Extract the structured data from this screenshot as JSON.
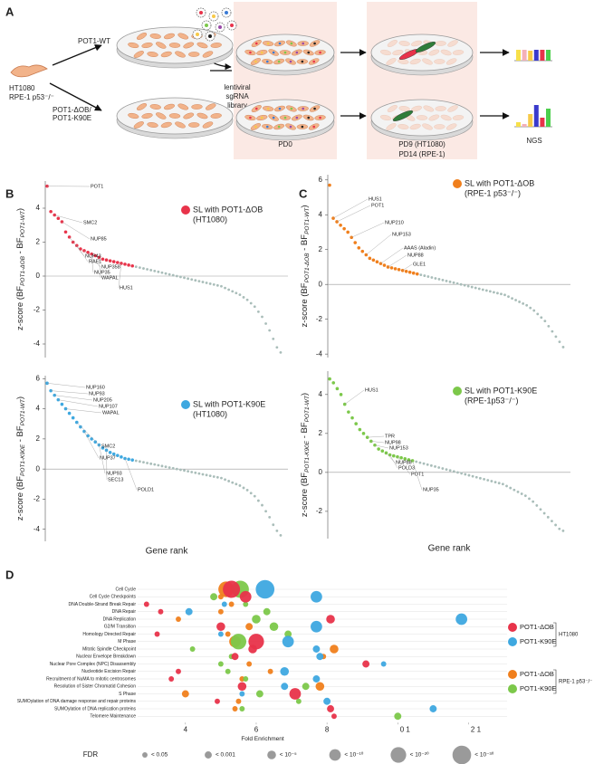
{
  "panel_a": {
    "label": "A",
    "wt": "POT1-WT",
    "cells": [
      "HT1080",
      "RPE-1 p53⁻/⁻"
    ],
    "mutants": [
      "POT1-ΔOB/",
      "POT1-K90E"
    ],
    "library": [
      "lentiviral",
      "sgRNA",
      "library"
    ],
    "pd0": "PD0",
    "pd_late": [
      "PD9  (HT1080)",
      "PD14 (RPE-1)"
    ],
    "ngs": "NGS"
  },
  "chart_data": [
    {
      "type": "rank",
      "panel": "B",
      "ylabel": [
        "z-score (BF",
        "POT1-ΔOB",
        " - BF",
        "POT1-WT",
        ")"
      ],
      "series": [
        {
          "name": "SL with POT1-ΔOB",
          "subtitle": "(HT1080)",
          "color": "#e8334a",
          "values": [
            5.3,
            3.8,
            3.6,
            3.4,
            3.2,
            2.6,
            2.3,
            2.0,
            1.8,
            1.6,
            1.5,
            1.4,
            1.3,
            1.2,
            1.1,
            1.0,
            0.95,
            0.9,
            0.85,
            0.8,
            0.75,
            0.7,
            0.65,
            0.6
          ]
        },
        {
          "color": "#a9bdb9",
          "values": [
            0.55,
            0.5,
            0.45,
            0.4,
            0.35,
            0.3,
            0.25,
            0.2,
            0.15,
            0.1,
            0.05,
            0,
            -0.05,
            -0.1,
            -0.15,
            -0.2,
            -0.25,
            -0.3,
            -0.35,
            -0.4,
            -0.45,
            -0.5,
            -0.55,
            -0.6,
            -0.7,
            -0.8,
            -0.9,
            -1.0,
            -1.1,
            -1.25,
            -1.4,
            -1.6,
            -1.8,
            -2.1,
            -2.4,
            -2.8,
            -3.2,
            -3.7,
            -4.2,
            -4.5
          ]
        }
      ],
      "ylim": [
        -4.8,
        5.6
      ],
      "yticks": [
        -4,
        -2,
        0,
        2,
        4
      ],
      "hline": 0,
      "annotations": [
        {
          "text": "POT1",
          "color": "#e8334a"
        },
        {
          "text": "SMC2",
          "color": "#9a4aa8"
        },
        {
          "text": "NUP85",
          "color": "#3a3acc"
        },
        {
          "text": "NUP43",
          "color": "#3a3acc"
        },
        {
          "text": "RAE1",
          "color": "#3a3acc"
        },
        {
          "text": "NUP358",
          "color": "#3a3acc"
        },
        {
          "text": "NUP35",
          "color": "#3a3acc"
        },
        {
          "text": "WAPAL",
          "color": "#9a4aa8"
        },
        {
          "text": "HUS1",
          "color": "#9a4aa8"
        }
      ]
    },
    {
      "type": "rank",
      "ylabel": [
        "z-score (BF",
        "POT1-K90E",
        " - BF",
        "POT1-WT",
        ")"
      ],
      "xlabel": "Gene rank",
      "series": [
        {
          "name": "SL with POT1-K90E",
          "subtitle": "(HT1080)",
          "color": "#3ea8e0",
          "values": [
            5.7,
            5.2,
            4.9,
            4.6,
            4.3,
            4.0,
            3.7,
            3.4,
            3.1,
            2.8,
            2.5,
            2.2,
            2.0,
            1.8,
            1.6,
            1.4,
            1.25,
            1.1,
            1.0,
            0.9,
            0.8,
            0.7,
            0.65,
            0.6
          ]
        },
        {
          "color": "#a9bdb9",
          "values": [
            0.55,
            0.5,
            0.45,
            0.4,
            0.35,
            0.3,
            0.25,
            0.2,
            0.15,
            0.1,
            0.05,
            0,
            -0.05,
            -0.1,
            -0.15,
            -0.2,
            -0.25,
            -0.3,
            -0.35,
            -0.4,
            -0.45,
            -0.5,
            -0.55,
            -0.6,
            -0.7,
            -0.8,
            -0.9,
            -1.0,
            -1.1,
            -1.25,
            -1.4,
            -1.6,
            -1.8,
            -2.1,
            -2.4,
            -2.8,
            -3.2,
            -3.7,
            -4.1,
            -4.4
          ]
        }
      ],
      "ylim": [
        -4.8,
        6.2
      ],
      "yticks": [
        -4,
        -2,
        0,
        2,
        4,
        6
      ],
      "hline": 0,
      "annotations": [
        {
          "text": "NUP160",
          "color": "#3a3acc"
        },
        {
          "text": "NUP93",
          "color": "#3a3acc"
        },
        {
          "text": "NUP205",
          "color": "#3a3acc"
        },
        {
          "text": "NUP107",
          "color": "#3a3acc"
        },
        {
          "text": "WAPAL",
          "color": "#9a4aa8"
        },
        {
          "text": "SMC2",
          "color": "#9a4aa8"
        },
        {
          "text": "NUP37",
          "color": "#3a3acc"
        },
        {
          "text": "NUP93",
          "color": "#3a3acc"
        },
        {
          "text": "SEC13",
          "color": "#3a3acc"
        },
        {
          "text": "POLD1",
          "color": "#9a4aa8"
        }
      ]
    },
    {
      "type": "rank",
      "panel": "C",
      "ylabel": [
        "z-score (BF",
        "POT1-ΔOB",
        " - BF",
        "POT1-WT",
        ")"
      ],
      "series": [
        {
          "name": "SL with POT1-ΔOB",
          "subtitle": "(RPE-1 p53⁻/⁻)",
          "color": "#f07f1c",
          "values": [
            5.7,
            3.8,
            3.6,
            3.4,
            3.2,
            3.0,
            2.7,
            2.4,
            2.1,
            1.9,
            1.7,
            1.5,
            1.4,
            1.3,
            1.2,
            1.1,
            1.0,
            0.95,
            0.9,
            0.85,
            0.8,
            0.75,
            0.7,
            0.65,
            0.6
          ]
        },
        {
          "color": "#a9bdb9",
          "values": [
            0.55,
            0.5,
            0.45,
            0.4,
            0.35,
            0.3,
            0.25,
            0.2,
            0.15,
            0.1,
            0.05,
            0,
            -0.05,
            -0.1,
            -0.15,
            -0.2,
            -0.25,
            -0.3,
            -0.35,
            -0.4,
            -0.45,
            -0.5,
            -0.55,
            -0.6,
            -0.7,
            -0.8,
            -0.9,
            -1.0,
            -1.1,
            -1.2,
            -1.35,
            -1.5,
            -1.7,
            -1.9,
            -2.1,
            -2.4,
            -2.7,
            -3.0,
            -3.3,
            -3.6
          ]
        }
      ],
      "ylim": [
        -4.2,
        6.3
      ],
      "yticks": [
        -4,
        -2,
        0,
        2,
        4,
        6
      ],
      "hline": 0,
      "annotations": [
        {
          "text": "HUS1",
          "color": "#9a4aa8"
        },
        {
          "text": "POT1",
          "color": "#e8334a"
        },
        {
          "text": "NUP210",
          "color": "#3a3acc"
        },
        {
          "text": "NUP153",
          "color": "#3a3acc"
        },
        {
          "text": "AAAS (Aladin)",
          "color": "#3a3acc"
        },
        {
          "text": "NUP88",
          "color": "#3a3acc"
        },
        {
          "text": "GLE1",
          "color": "#3a3acc"
        }
      ]
    },
    {
      "type": "rank",
      "ylabel": [
        "z-score (BF",
        "POT1-K90E",
        " - BF",
        "POT1-WT",
        ")"
      ],
      "xlabel": "Gene rank",
      "series": [
        {
          "name": "SL with POT1-K90E",
          "subtitle": "(RPE-1p53⁻/⁻)",
          "color": "#7cc84a",
          "values": [
            4.8,
            4.6,
            4.3,
            4.0,
            3.5,
            3.1,
            2.8,
            2.5,
            2.2,
            2.0,
            1.8,
            1.6,
            1.4,
            1.2,
            1.1,
            1.0,
            0.9,
            0.85,
            0.8,
            0.75,
            0.7,
            0.65,
            0.6
          ]
        },
        {
          "color": "#a9bdb9",
          "values": [
            0.55,
            0.5,
            0.45,
            0.4,
            0.35,
            0.3,
            0.25,
            0.2,
            0.15,
            0.1,
            0.05,
            0,
            -0.05,
            -0.1,
            -0.15,
            -0.2,
            -0.25,
            -0.3,
            -0.35,
            -0.4,
            -0.45,
            -0.5,
            -0.55,
            -0.6,
            -0.7,
            -0.8,
            -0.9,
            -1.0,
            -1.1,
            -1.2,
            -1.35,
            -1.5,
            -1.7,
            -1.9,
            -2.1,
            -2.3,
            -2.5,
            -2.7,
            -2.9,
            -3.0
          ]
        }
      ],
      "ylim": [
        -3.4,
        5.2
      ],
      "yticks": [
        -2,
        0,
        2,
        4
      ],
      "hline": 0,
      "annotations": [
        {
          "text": "HUS1",
          "color": "#9a4aa8"
        },
        {
          "text": "TPR",
          "color": "#3a3acc"
        },
        {
          "text": "NUP98",
          "color": "#3a3acc"
        },
        {
          "text": "NUP153",
          "color": "#3a3acc"
        },
        {
          "text": "NUP88",
          "color": "#3a3acc"
        },
        {
          "text": "POLD3",
          "color": "#9a4aa8"
        },
        {
          "text": "POT1",
          "color": "#e8334a"
        },
        {
          "text": "NUP35",
          "color": "#3a3acc"
        }
      ]
    },
    {
      "type": "bubble",
      "panel": "D",
      "xlabel": "Fold Enrichment",
      "categories": [
        "Cell Cycle",
        "Cell Cycle Checkpoints",
        "DNA Double-Strand Break Repair",
        "DNA Repair",
        "DNA Replication",
        "G2/M Transition",
        "Homology Directed Repair",
        "M Phase",
        "Mitotic Spindle Checkpoint",
        "Nuclear Envelope Breakdown",
        "Nuclear Pore Complex (NPC) Disassembly",
        "Nucleotide Excision Repair",
        "Recruitment of NuMA to mitotic centrosomes",
        "Resolution of Sister Chromatid Cohesion",
        "S Phase",
        "SUMOylation of DNA damage response and repair proteins",
        "SUMOylation of DNA replication proteins",
        "Telomere Maintenance"
      ],
      "series": [
        {
          "name": "POT1-ΔOB",
          "group": "HT1080",
          "color": "#e8334a",
          "values": [
            5.3,
            5.7,
            2.9,
            3.3,
            8.1,
            5.0,
            3.2,
            6.0,
            5.9,
            5.4,
            9.1,
            3.8,
            3.6,
            5.6,
            7.1,
            4.9,
            8.1,
            8.2
          ],
          "sizes": [
            1e-25,
            1e-10,
            0.05,
            0.05,
            1e-05,
            1e-05,
            0.05,
            1e-20,
            1e-05,
            0.001,
            0.001,
            0.05,
            0.05,
            1e-05,
            1e-10,
            0.05,
            0.001,
            0.05
          ]
        },
        {
          "name": "POT1-K90E",
          "group": "HT1080",
          "color": "#3ea8e0",
          "values": [
            6.25,
            7.7,
            5.1,
            4.1,
            11.8,
            7.7,
            5.0,
            6.9,
            7.7,
            7.8,
            9.6,
            6.8,
            7.7,
            6.8,
            5.6,
            8.0,
            11.0,
            null
          ],
          "sizes": [
            1e-30,
            1e-10,
            0.05,
            0.001,
            1e-10,
            1e-10,
            0.05,
            1e-10,
            0.001,
            0.001,
            0.05,
            1e-05,
            0.001,
            0.001,
            0.05,
            0.001,
            0.001,
            null
          ]
        },
        {
          "name": "POT1-ΔOB",
          "group": "RPE-1 p53⁻/⁻",
          "color": "#f07f1c",
          "values": [
            5.15,
            5.0,
            5.3,
            5.0,
            3.8,
            5.8,
            5.2,
            5.4,
            8.2,
            7.9,
            5.8,
            6.4,
            5.6,
            7.8,
            4.0,
            5.5,
            5.4,
            null
          ],
          "sizes": [
            1e-20,
            0.05,
            0.05,
            0.05,
            0.05,
            0.001,
            0.05,
            1e-10,
            1e-05,
            0.05,
            0.05,
            0.05,
            0.05,
            1e-05,
            0.001,
            0.05,
            0.05,
            null
          ]
        },
        {
          "name": "POT1-K90E",
          "group": "RPE-1 p53⁻/⁻",
          "color": "#7cc84a",
          "values": [
            5.55,
            4.8,
            5.7,
            6.3,
            6.0,
            6.5,
            6.9,
            5.5,
            4.2,
            5.3,
            5.0,
            5.2,
            5.7,
            7.4,
            6.1,
            7.2,
            5.6,
            10.0
          ],
          "sizes": [
            1e-25,
            0.001,
            0.05,
            0.001,
            1e-05,
            1e-05,
            0.001,
            1e-20,
            0.05,
            0.05,
            0.05,
            0.05,
            0.05,
            0.001,
            0.001,
            0.05,
            0.05,
            0.001
          ]
        }
      ],
      "xlim": [
        2.7,
        12.5
      ],
      "xticks": [
        4,
        6,
        8,
        {
          "value": 10,
          "label": "0   1"
        },
        {
          "value": 12,
          "label": "2   1"
        }
      ],
      "grid": true,
      "size_legend": {
        "title": "FDR",
        "entries": [
          {
            "value": 0.05,
            "label": "< 0.05"
          },
          {
            "value": 0.001,
            "label": "< 0.001"
          },
          {
            "value": 1e-05,
            "label": "< 10⁻⁵"
          },
          {
            "value": 1e-10,
            "label": "< 10⁻¹⁰"
          },
          {
            "value": 1e-20,
            "label": "< 10⁻²⁰"
          },
          {
            "value": 1e-30,
            "label": "< 10⁻³⁰"
          }
        ]
      }
    }
  ]
}
